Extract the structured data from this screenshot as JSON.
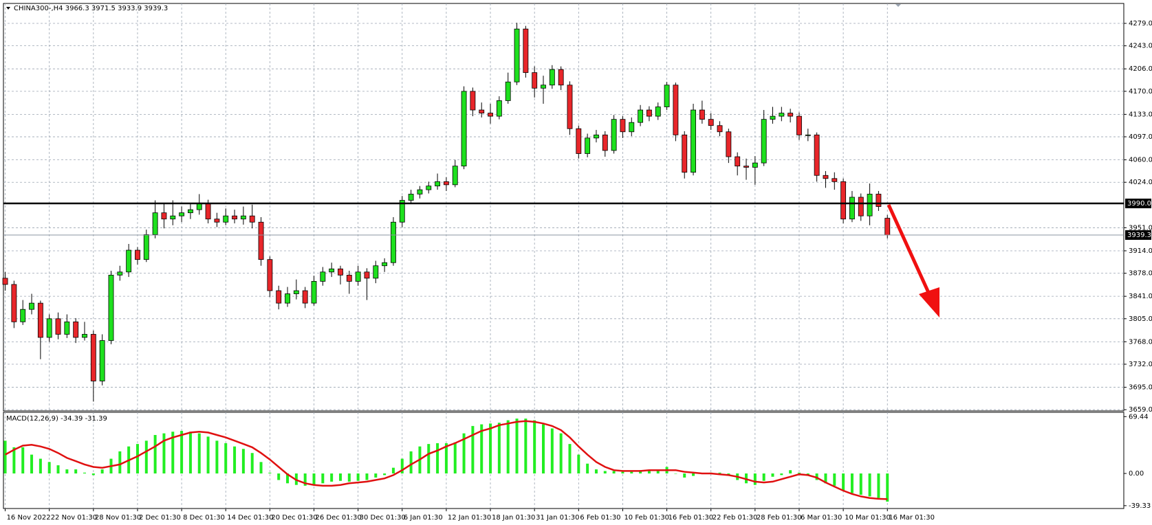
{
  "chart_data": [
    {
      "type": "candlestick",
      "symbol": "CHINA300-,H4",
      "ohlc": [
        [
          3870,
          3880,
          3850,
          3860
        ],
        [
          3860,
          3866,
          3790,
          3800
        ],
        [
          3800,
          3835,
          3795,
          3820
        ],
        [
          3820,
          3845,
          3812,
          3830
        ],
        [
          3830,
          3834,
          3740,
          3775
        ],
        [
          3775,
          3812,
          3768,
          3805
        ],
        [
          3805,
          3815,
          3772,
          3780
        ],
        [
          3780,
          3812,
          3774,
          3800
        ],
        [
          3800,
          3806,
          3766,
          3775
        ],
        [
          3775,
          3800,
          3770,
          3780
        ],
        [
          3780,
          3786,
          3672,
          3705
        ],
        [
          3705,
          3780,
          3698,
          3770
        ],
        [
          3770,
          3882,
          3764,
          3875
        ],
        [
          3875,
          3890,
          3866,
          3880
        ],
        [
          3880,
          3925,
          3872,
          3915
        ],
        [
          3915,
          3920,
          3892,
          3900
        ],
        [
          3900,
          3948,
          3896,
          3940
        ],
        [
          3940,
          3995,
          3934,
          3975
        ],
        [
          3975,
          3990,
          3950,
          3965
        ],
        [
          3965,
          3995,
          3955,
          3970
        ],
        [
          3970,
          3985,
          3960,
          3975
        ],
        [
          3975,
          3990,
          3965,
          3980
        ],
        [
          3980,
          4005,
          3972,
          3990
        ],
        [
          3990,
          3996,
          3958,
          3965
        ],
        [
          3965,
          3975,
          3952,
          3960
        ],
        [
          3960,
          3982,
          3955,
          3970
        ],
        [
          3970,
          3980,
          3958,
          3965
        ],
        [
          3965,
          3985,
          3956,
          3970
        ],
        [
          3970,
          3988,
          3950,
          3960
        ],
        [
          3960,
          3968,
          3890,
          3900
        ],
        [
          3900,
          3905,
          3840,
          3850
        ],
        [
          3850,
          3858,
          3820,
          3830
        ],
        [
          3830,
          3856,
          3824,
          3845
        ],
        [
          3845,
          3868,
          3836,
          3850
        ],
        [
          3850,
          3856,
          3822,
          3830
        ],
        [
          3830,
          3874,
          3826,
          3865
        ],
        [
          3865,
          3888,
          3858,
          3880
        ],
        [
          3880,
          3895,
          3872,
          3885
        ],
        [
          3885,
          3890,
          3860,
          3875
        ],
        [
          3875,
          3882,
          3845,
          3865
        ],
        [
          3865,
          3890,
          3858,
          3880
        ],
        [
          3880,
          3886,
          3835,
          3870
        ],
        [
          3870,
          3898,
          3862,
          3890
        ],
        [
          3890,
          3902,
          3880,
          3895
        ],
        [
          3895,
          3968,
          3890,
          3960
        ],
        [
          3960,
          4002,
          3952,
          3995
        ],
        [
          3995,
          4012,
          3990,
          4005
        ],
        [
          4005,
          4018,
          3998,
          4012
        ],
        [
          4012,
          4025,
          4006,
          4018
        ],
        [
          4018,
          4038,
          4012,
          4025
        ],
        [
          4025,
          4032,
          4010,
          4020
        ],
        [
          4020,
          4060,
          4016,
          4050
        ],
        [
          4050,
          4178,
          4045,
          4170
        ],
        [
          4170,
          4176,
          4130,
          4140
        ],
        [
          4140,
          4152,
          4128,
          4135
        ],
        [
          4135,
          4150,
          4118,
          4130
        ],
        [
          4130,
          4162,
          4125,
          4155
        ],
        [
          4155,
          4200,
          4150,
          4185
        ],
        [
          4185,
          4280,
          4180,
          4270
        ],
        [
          4270,
          4275,
          4192,
          4200
        ],
        [
          4200,
          4210,
          4160,
          4175
        ],
        [
          4175,
          4195,
          4150,
          4180
        ],
        [
          4180,
          4212,
          4174,
          4205
        ],
        [
          4205,
          4210,
          4172,
          4180
        ],
        [
          4180,
          4186,
          4100,
          4110
        ],
        [
          4110,
          4115,
          4062,
          4070
        ],
        [
          4070,
          4102,
          4064,
          4095
        ],
        [
          4095,
          4108,
          4088,
          4100
        ],
        [
          4100,
          4106,
          4065,
          4075
        ],
        [
          4075,
          4132,
          4070,
          4125
        ],
        [
          4125,
          4130,
          4095,
          4105
        ],
        [
          4105,
          4128,
          4098,
          4120
        ],
        [
          4120,
          4148,
          4114,
          4140
        ],
        [
          4140,
          4146,
          4122,
          4130
        ],
        [
          4130,
          4152,
          4124,
          4145
        ],
        [
          4145,
          4185,
          4140,
          4180
        ],
        [
          4180,
          4184,
          4090,
          4100
        ],
        [
          4100,
          4106,
          4030,
          4040
        ],
        [
          4040,
          4150,
          4035,
          4140
        ],
        [
          4140,
          4155,
          4118,
          4125
        ],
        [
          4125,
          4135,
          4108,
          4115
        ],
        [
          4115,
          4122,
          4098,
          4105
        ],
        [
          4105,
          4110,
          4055,
          4065
        ],
        [
          4065,
          4072,
          4035,
          4050
        ],
        [
          4050,
          4062,
          4028,
          4048
        ],
        [
          4048,
          4066,
          4020,
          4055
        ],
        [
          4055,
          4140,
          4050,
          4125
        ],
        [
          4125,
          4145,
          4118,
          4130
        ],
        [
          4130,
          4145,
          4122,
          4135
        ],
        [
          4135,
          4142,
          4120,
          4130
        ],
        [
          4130,
          4136,
          4092,
          4100
        ],
        [
          4100,
          4110,
          4090,
          4100
        ],
        [
          4100,
          4104,
          4025,
          4035
        ],
        [
          4035,
          4042,
          4015,
          4030
        ],
        [
          4030,
          4040,
          4012,
          4025
        ],
        [
          4025,
          4030,
          3958,
          3965
        ],
        [
          3965,
          4010,
          3960,
          4000
        ],
        [
          4000,
          4006,
          3962,
          3970
        ],
        [
          3970,
          4022,
          3955,
          4005
        ],
        [
          4005,
          4010,
          3978,
          3985
        ],
        [
          3966.3,
          3971.5,
          3933.9,
          3939.3
        ]
      ],
      "up_color": "#1ee01e",
      "down_color": "#e8262a",
      "xlim": [
        -0.2,
        126.8
      ],
      "xticks": [
        {
          "value": 0,
          "label": "16 Nov 2022"
        },
        {
          "value": 5,
          "label": "22 Nov 01:30"
        },
        {
          "value": 10,
          "label": "28 Nov 01:30"
        },
        {
          "value": 15,
          "label": "2 Dec 01:30"
        },
        {
          "value": 20,
          "label": "8 Dec 01:30"
        },
        {
          "value": 25,
          "label": "14 Dec 01:30"
        },
        {
          "value": 30,
          "label": "20 Dec 01:30"
        },
        {
          "value": 35,
          "label": "26 Dec 01:30"
        },
        {
          "value": 40,
          "label": "30 Dec 01:30"
        },
        {
          "value": 45,
          "label": "6 Jan 01:30"
        },
        {
          "value": 50,
          "label": "12 Jan 01:30"
        },
        {
          "value": 55,
          "label": "18 Jan 01:30"
        },
        {
          "value": 60,
          "label": "31 Jan 01:30"
        },
        {
          "value": 65,
          "label": "6 Feb 01:30"
        },
        {
          "value": 70,
          "label": "10 Feb 01:30"
        },
        {
          "value": 75,
          "label": "16 Feb 01:30"
        },
        {
          "value": 80,
          "label": "22 Feb 01:30"
        },
        {
          "value": 85,
          "label": "28 Feb 01:30"
        },
        {
          "value": 90,
          "label": "6 Mar 01:30"
        },
        {
          "value": 95,
          "label": "10 Mar 01:30"
        },
        {
          "value": 100,
          "label": "16 Mar 01:30"
        }
      ],
      "ylim": [
        3657,
        4311
      ],
      "yticks": [
        {
          "value": 3659,
          "label": "3659.0"
        },
        {
          "value": 3695,
          "label": "3695.0"
        },
        {
          "value": 3732,
          "label": "3732.0"
        },
        {
          "value": 3768,
          "label": "3768.0"
        },
        {
          "value": 3805,
          "label": "3805.0"
        },
        {
          "value": 3841,
          "label": "3841.0"
        },
        {
          "value": 3878,
          "label": "3878.0"
        },
        {
          "value": 3914,
          "label": "3914.0"
        },
        {
          "value": 3951,
          "label": "3951.0"
        },
        {
          "value": 4024,
          "label": "4024.0"
        },
        {
          "value": 4060,
          "label": "4060.0"
        },
        {
          "value": 4097,
          "label": "4097.0"
        },
        {
          "value": 4133,
          "label": "4133.0"
        },
        {
          "value": 4170,
          "label": "4170.0"
        },
        {
          "value": 4206,
          "label": "4206.0"
        },
        {
          "value": 4243,
          "label": "4243.0"
        },
        {
          "value": 4279,
          "label": "4279.0"
        }
      ],
      "hline": {
        "value": 3990,
        "label": "3990.0"
      },
      "grid": true
    },
    {
      "type": "macd",
      "label": "MACD(12,26,9)",
      "histogram": [
        40,
        32,
        32,
        23,
        18,
        14,
        10,
        5,
        5,
        1,
        -2,
        5,
        18,
        27,
        33,
        36,
        40,
        47,
        49,
        51,
        52,
        51,
        49,
        45,
        40,
        37,
        33,
        30,
        25,
        14,
        1,
        -8,
        -12,
        -14,
        -15,
        -14,
        -12,
        -10,
        -9,
        -10,
        -9,
        -8,
        -5,
        -2,
        7,
        18,
        27,
        33,
        36,
        37,
        37,
        38,
        49,
        58,
        60,
        61,
        62,
        65,
        67,
        67,
        65,
        60,
        55,
        49,
        36,
        23,
        12,
        5,
        3,
        3,
        2,
        2,
        4,
        4,
        5,
        8,
        0,
        -5,
        -3,
        0,
        1,
        1,
        -2,
        -8,
        -12,
        -14,
        -9,
        -4,
        -2,
        4,
        1,
        -2,
        -8,
        -12,
        -15,
        -21,
        -24,
        -26,
        -28,
        -30,
        -34.39
      ],
      "signal": [
        23,
        29,
        34,
        35,
        33,
        30,
        25,
        19,
        15,
        11,
        8,
        7,
        9,
        11,
        16,
        21,
        27,
        33,
        40,
        44,
        47,
        50,
        51,
        50,
        47,
        44,
        40,
        36,
        32,
        25,
        17,
        8,
        -1,
        -8,
        -12,
        -14,
        -15,
        -15,
        -14,
        -12,
        -11,
        -10,
        -8,
        -6,
        -2,
        4,
        11,
        17,
        24,
        28,
        33,
        37,
        42,
        47,
        52,
        55,
        59,
        61,
        63,
        64,
        63,
        61,
        58,
        53,
        44,
        33,
        23,
        14,
        8,
        4,
        3,
        3,
        3,
        4,
        4,
        4,
        4,
        2,
        1,
        0,
        0,
        -1,
        -2,
        -4,
        -7,
        -10,
        -11,
        -10,
        -7,
        -4,
        -1,
        -2,
        -5,
        -11,
        -16,
        -21,
        -25,
        -28,
        -30,
        -31,
        -31.39
      ],
      "histogram_color": "#22ee22",
      "signal_color": "#e01010",
      "ylim": [
        -42.8,
        74.7
      ],
      "yticks": [
        69.44,
        {
          "value": 0,
          "label": "0.00"
        },
        -39.33
      ]
    }
  ]
}
